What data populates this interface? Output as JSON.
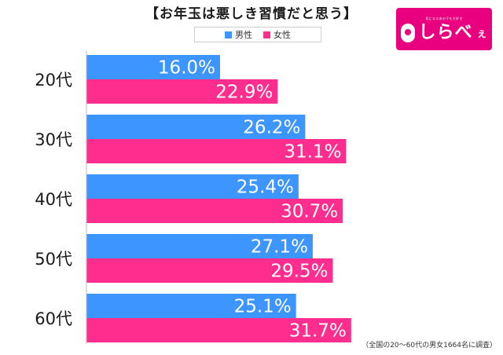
{
  "title": "【お年玉は悪しき習慣だと思う】",
  "legend": [
    {
      "label": "男性",
      "color": "#3d95ff"
    },
    {
      "label": "女性",
      "color": "#ff2d8e"
    }
  ],
  "logo": {
    "tagline": "気になるあの子も大好き",
    "word": "しらべ",
    "small": "ぇ",
    "background": "#e8007f"
  },
  "footnote": "（全国の20～60代の男女1664名に調査）",
  "chart_data": {
    "type": "bar",
    "orientation": "horizontal",
    "title": "【お年玉は悪しき習慣だと思う】",
    "categories": [
      "20代",
      "30代",
      "40代",
      "50代",
      "60代"
    ],
    "series": [
      {
        "name": "男性",
        "color": "#3d95ff",
        "values": [
          16.0,
          26.2,
          25.4,
          27.1,
          25.1
        ],
        "labels": [
          "16.0%",
          "26.2%",
          "25.4%",
          "27.1%",
          "25.1%"
        ]
      },
      {
        "name": "女性",
        "color": "#ff2d8e",
        "values": [
          22.9,
          31.1,
          30.7,
          29.5,
          31.7
        ],
        "labels": [
          "22.9%",
          "31.1%",
          "30.7%",
          "29.5%",
          "31.7%"
        ]
      }
    ],
    "xlim": [
      0,
      48
    ],
    "unit": "%",
    "legend_position": "top",
    "grid": false
  }
}
